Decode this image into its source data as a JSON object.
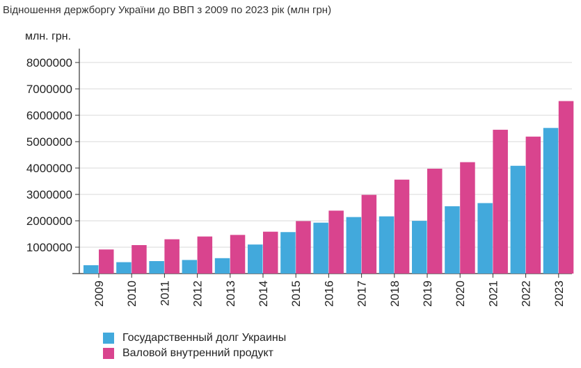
{
  "chart_data": {
    "type": "bar",
    "title": "Відношення держборгу України до ВВП з 2009 по 2023 рік (млн грн)",
    "ylabel": "млн. грн.",
    "xlabel": "",
    "ylim": [
      0,
      8000000
    ],
    "yticks": [
      "1000000",
      "2000000",
      "3000000",
      "4000000",
      "5000000",
      "6000000",
      "7000000",
      "8000000"
    ],
    "ytick_values": [
      1000000,
      2000000,
      3000000,
      4000000,
      5000000,
      6000000,
      7000000,
      8000000
    ],
    "categories": [
      "2009",
      "2010",
      "2011",
      "2012",
      "2013",
      "2014",
      "2015",
      "2016",
      "2017",
      "2018",
      "2019",
      "2020",
      "2021",
      "2022",
      "2023"
    ],
    "series": [
      {
        "name": "Государственный долг Украины",
        "color": "#42a9dc",
        "values": [
          317000,
          432000,
          473000,
          515000,
          584000,
          1101000,
          1572000,
          1929000,
          2142000,
          2168000,
          1998000,
          2551000,
          2671000,
          4085000,
          5519000
        ]
      },
      {
        "name": "Валовой внутренний продукт",
        "color": "#d9448e",
        "values": [
          913000,
          1079000,
          1300000,
          1405000,
          1465000,
          1587000,
          1989000,
          2385000,
          2983000,
          3560000,
          3975000,
          4222000,
          5451000,
          5191000,
          6538000
        ]
      }
    ],
    "legend_position": "bottom-left",
    "grid": true
  }
}
